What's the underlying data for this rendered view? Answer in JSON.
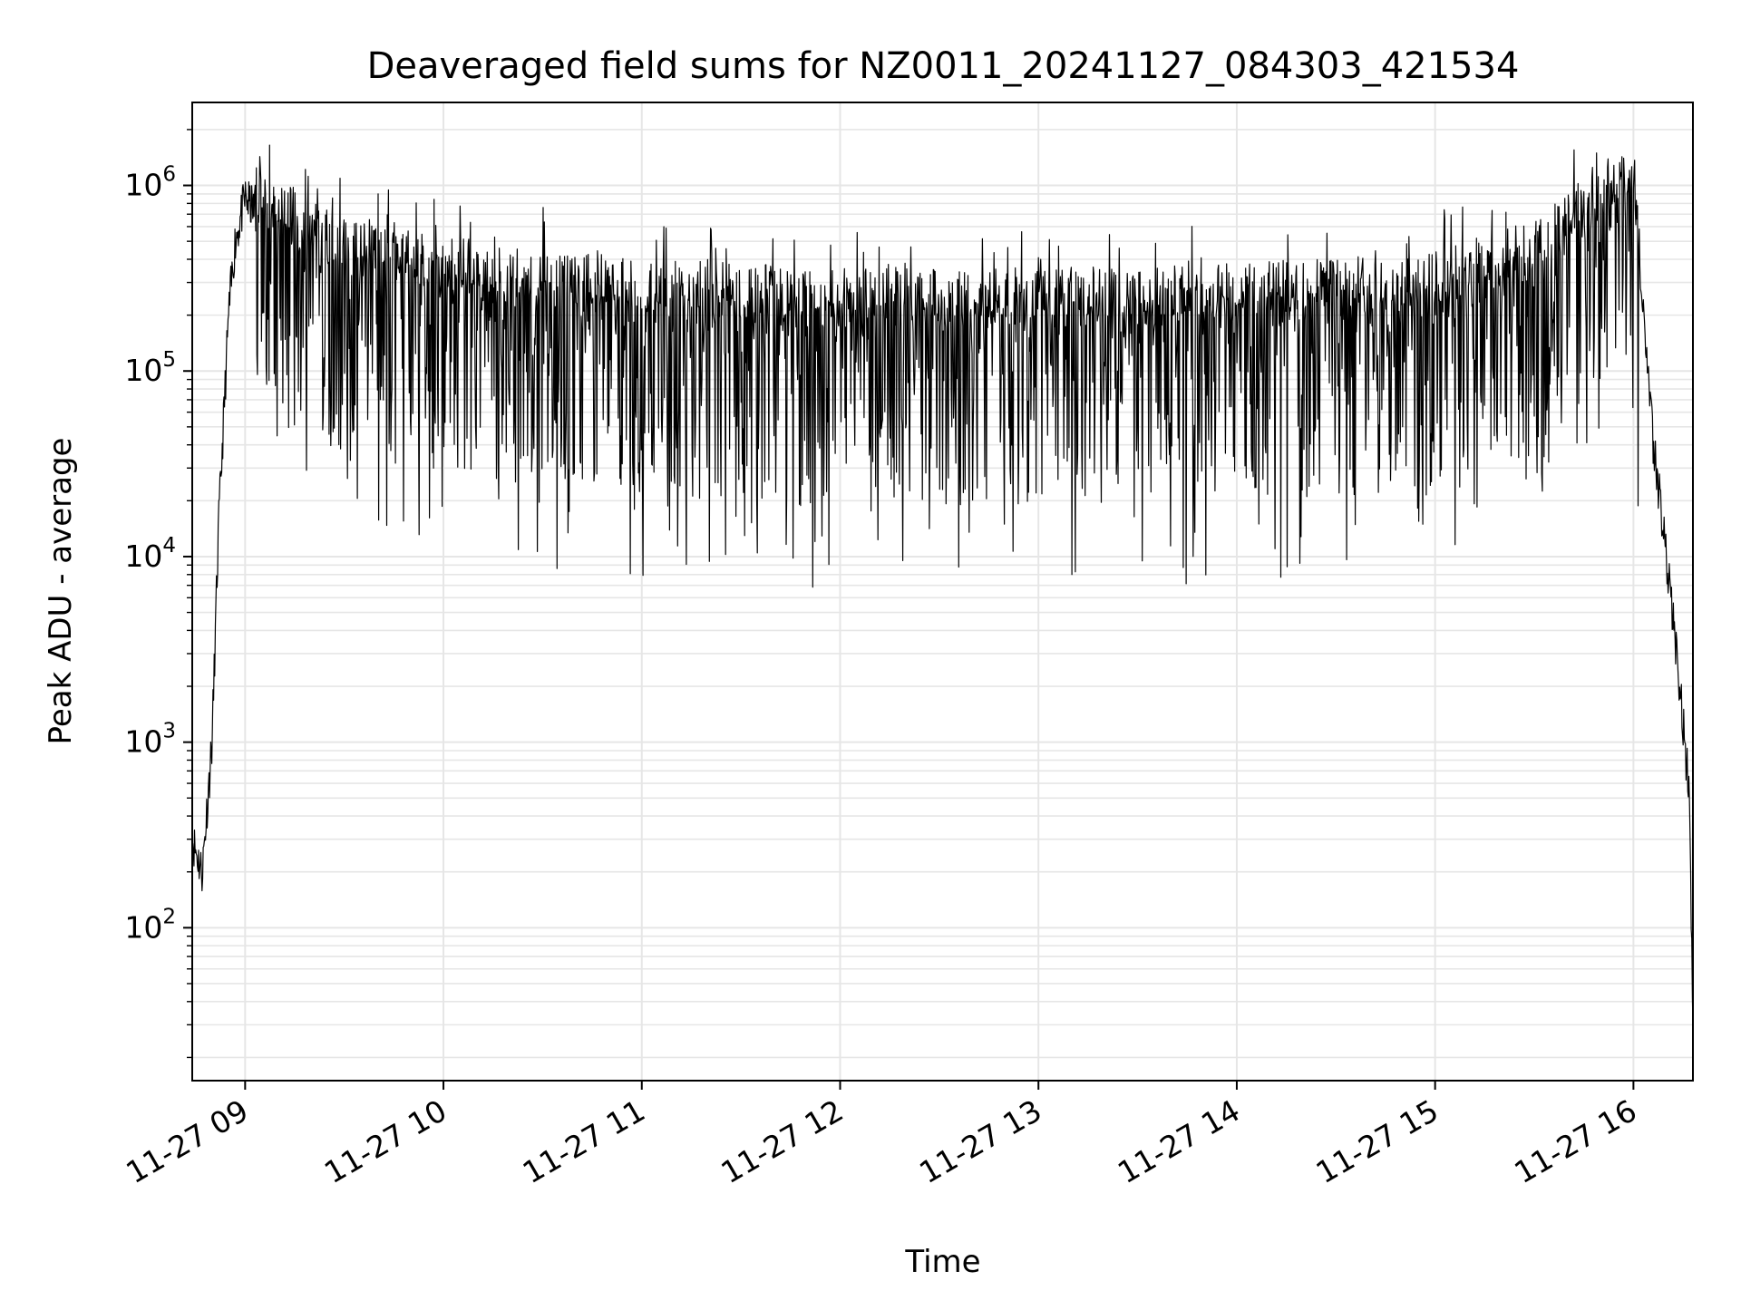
{
  "chart_data": {
    "type": "line",
    "title": "Deaveraged field sums for NZ0011_20241127_084303_421534",
    "xlabel": "Time",
    "ylabel": "Peak ADU - average",
    "y_scale": "log",
    "grid": true,
    "legend": "none",
    "line_color": "#000000",
    "grid_color": "#e6e6e6",
    "xlim": [
      "2024-11-27 08:44",
      "2024-11-27 16:18"
    ],
    "ylim": [
      15,
      2800000
    ],
    "x_ticks": [
      {
        "time": "2024-11-27 09:00",
        "label": "11-27 09"
      },
      {
        "time": "2024-11-27 10:00",
        "label": "11-27 10"
      },
      {
        "time": "2024-11-27 11:00",
        "label": "11-27 11"
      },
      {
        "time": "2024-11-27 12:00",
        "label": "11-27 12"
      },
      {
        "time": "2024-11-27 13:00",
        "label": "11-27 13"
      },
      {
        "time": "2024-11-27 14:00",
        "label": "11-27 14"
      },
      {
        "time": "2024-11-27 15:00",
        "label": "11-27 15"
      },
      {
        "time": "2024-11-27 16:00",
        "label": "11-27 16"
      }
    ],
    "y_ticks": [
      {
        "value": 100,
        "base": "10",
        "exp": "2"
      },
      {
        "value": 1000,
        "base": "10",
        "exp": "3"
      },
      {
        "value": 10000,
        "base": "10",
        "exp": "4"
      },
      {
        "value": 100000,
        "base": "10",
        "exp": "5"
      },
      {
        "value": 1000000,
        "base": "10",
        "exp": "6"
      }
    ],
    "series": [
      {
        "values_envelope": [
          {
            "time": "2024-11-27 08:44",
            "value": 300
          },
          {
            "time": "2024-11-27 08:47",
            "value": 200
          },
          {
            "time": "2024-11-27 08:50",
            "value": 1000
          },
          {
            "time": "2024-11-27 08:52",
            "value": 15000
          },
          {
            "time": "2024-11-27 08:55",
            "value": 200000
          },
          {
            "time": "2024-11-27 08:57",
            "value": 500000
          },
          {
            "time": "2024-11-27 09:00",
            "value": 850000
          },
          {
            "time": "2024-11-27 09:05",
            "value": 650000
          },
          {
            "time": "2024-11-27 09:15",
            "value": 500000
          },
          {
            "time": "2024-11-27 09:30",
            "value": 350000
          },
          {
            "time": "2024-11-27 10:00",
            "value": 280000
          },
          {
            "time": "2024-11-27 11:00",
            "value": 210000
          },
          {
            "time": "2024-11-27 12:00",
            "value": 190000
          },
          {
            "time": "2024-11-27 13:00",
            "value": 190000
          },
          {
            "time": "2024-11-27 14:00",
            "value": 200000
          },
          {
            "time": "2024-11-27 15:00",
            "value": 230000
          },
          {
            "time": "2024-11-27 15:30",
            "value": 350000
          },
          {
            "time": "2024-11-27 15:50",
            "value": 650000
          },
          {
            "time": "2024-11-27 16:00",
            "value": 900000
          },
          {
            "time": "2024-11-27 16:03",
            "value": 200000
          },
          {
            "time": "2024-11-27 16:06",
            "value": 40000
          },
          {
            "time": "2024-11-27 16:10",
            "value": 10000
          },
          {
            "time": "2024-11-27 16:14",
            "value": 2000
          },
          {
            "time": "2024-11-27 16:17",
            "value": 500
          },
          {
            "time": "2024-11-27 16:18",
            "value": 25
          }
        ]
      }
    ]
  }
}
